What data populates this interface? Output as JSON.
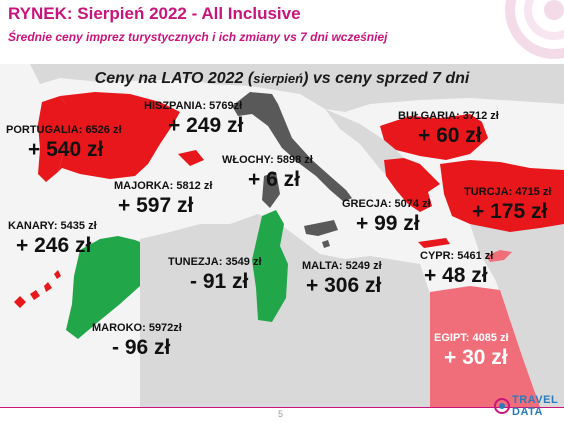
{
  "header": {
    "title": "RYNEK: Sierpień 2022 - All Inclusive",
    "subtitle": "Średnie ceny imprez turystycznych i ich zmiany vs 7 dni wcześniej"
  },
  "map": {
    "title_main": "Ceny na LATO 2022 (",
    "title_paren": "sierpień",
    "title_end": ") vs ceny sprzed 7 dni",
    "colors": {
      "background": "#f4f4f4",
      "land": "#d9d9d9",
      "red": "#e8171b",
      "italy": "#595959",
      "green": "#22a64a",
      "pink": "#f06d7a",
      "accent": "#c8157c"
    },
    "countries": {
      "portugalia": {
        "name": "PORTUGALIA: 6526 zł",
        "change": "+ 540 zł"
      },
      "hiszpania": {
        "name": "HISZPANIA: 5769zł",
        "change": "+ 249 zł"
      },
      "majorka": {
        "name": "MAJORKA: 5812 zł",
        "change": "+ 597 zł"
      },
      "wlochy": {
        "name": "WŁOCHY: 5898 zł",
        "change": "+ 6 zł"
      },
      "bulgaria": {
        "name": "BUŁGARIA: 3712 zł",
        "change": "+ 60 zł"
      },
      "turcja": {
        "name": "TURCJA: 4715 zł",
        "change": "+ 175 zł"
      },
      "grecja": {
        "name": "GRECJA: 5074 zł",
        "change": "+ 99 zł"
      },
      "kanary": {
        "name": "KANARY: 5435 zł",
        "change": "+ 246 zł"
      },
      "tunezja": {
        "name": "TUNEZJA: 3549 zł",
        "change": "- 91 zł"
      },
      "malta": {
        "name": "MALTA: 5249 zł",
        "change": "+ 306 zł"
      },
      "cypr": {
        "name": "CYPR: 5461 zł",
        "change": "+ 48 zł"
      },
      "maroko": {
        "name": "MAROKO: 5972zł",
        "change": "- 96 zł"
      },
      "egipt": {
        "name": "EGIPT: 4085 zł",
        "change": "+ 30 zł"
      }
    }
  },
  "footer": {
    "page_number": "5",
    "logo_line1": "TRAVEL",
    "logo_line2": "DATA"
  }
}
